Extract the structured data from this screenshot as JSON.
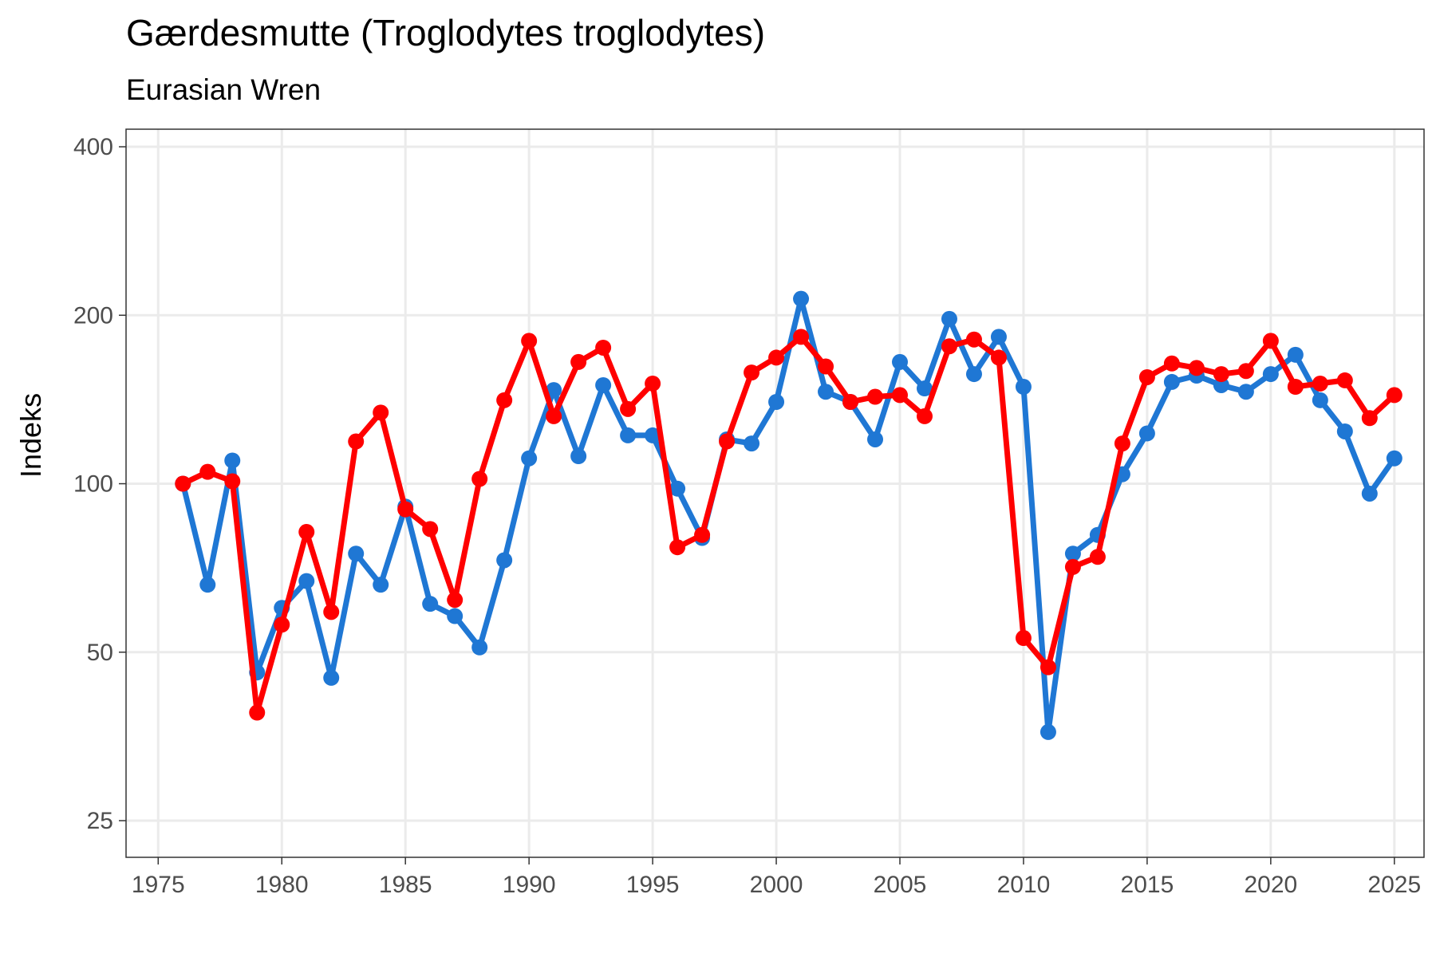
{
  "chart_data": {
    "type": "line",
    "title": "Gærdesmutte (Troglodytes troglodytes)",
    "subtitle": "Eurasian Wren",
    "xlabel": "",
    "ylabel": "Indeks",
    "y_scale": "log",
    "ylim": [
      21.5,
      430
    ],
    "xlim": [
      1973.7,
      2026.2
    ],
    "x_ticks": [
      1975,
      1980,
      1985,
      1990,
      1995,
      2000,
      2005,
      2010,
      2015,
      2020,
      2025
    ],
    "y_ticks": [
      25,
      50,
      100,
      200,
      400
    ],
    "grid": true,
    "legend": "none",
    "x": [
      1976,
      1977,
      1978,
      1979,
      1980,
      1981,
      1982,
      1983,
      1984,
      1985,
      1986,
      1987,
      1988,
      1989,
      1990,
      1991,
      1992,
      1993,
      1994,
      1995,
      1996,
      1997,
      1998,
      1999,
      2000,
      2001,
      2002,
      2003,
      2004,
      2005,
      2006,
      2007,
      2008,
      2009,
      2010,
      2011,
      2012,
      2013,
      2014,
      2015,
      2016,
      2017,
      2018,
      2019,
      2020,
      2021,
      2022,
      2023,
      2024,
      2025
    ],
    "series": [
      {
        "color": "#1f77d4",
        "values": [
          100,
          66,
          110,
          46,
          60,
          67,
          45,
          75,
          66,
          91,
          61,
          58,
          51,
          73,
          111,
          147,
          112,
          150,
          122,
          122,
          98,
          80,
          120,
          118,
          140,
          214,
          146,
          140,
          120,
          165,
          148,
          197,
          157,
          183,
          149,
          36,
          75,
          81,
          104,
          123,
          152,
          156,
          150,
          146,
          157,
          170,
          141,
          124,
          96,
          111
        ]
      },
      {
        "color": "#ff0000",
        "values": [
          100,
          105,
          101,
          39,
          56,
          82,
          59,
          119,
          134,
          90,
          83,
          62,
          102,
          141,
          180,
          132,
          165,
          175,
          136,
          151,
          77,
          81,
          119,
          158,
          168,
          183,
          162,
          140,
          143,
          144,
          132,
          176,
          181,
          168,
          53,
          47,
          71,
          74,
          118,
          155,
          164,
          161,
          157,
          159,
          180,
          149,
          151,
          153,
          131,
          144
        ]
      }
    ]
  }
}
